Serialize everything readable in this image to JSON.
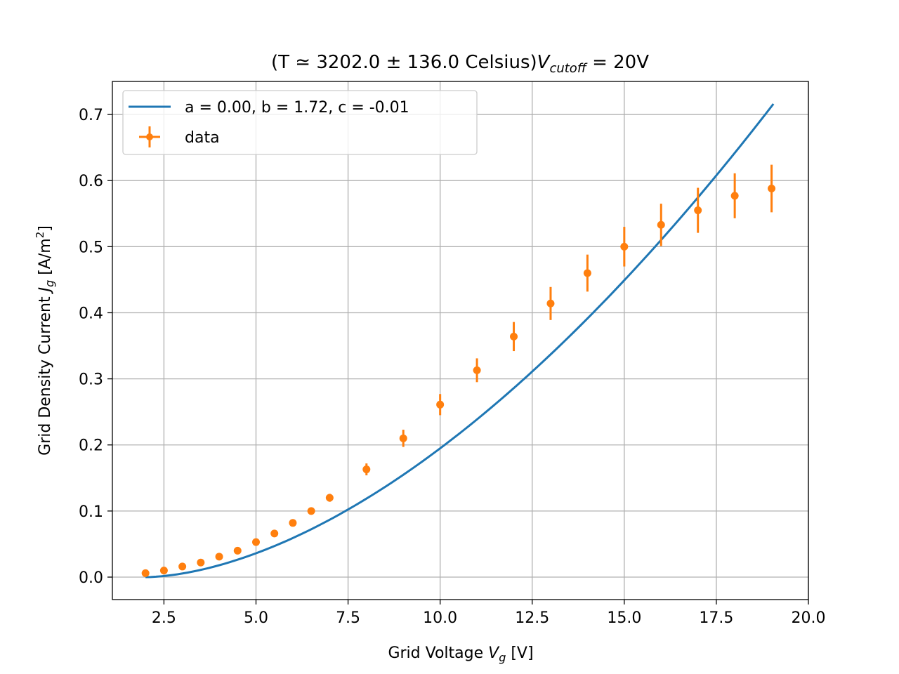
{
  "chart_data": {
    "type": "scatter",
    "title": {
      "prefix": "(T ≃ 3202.0 ± 136.0 Celsius)",
      "var": "V",
      "var_sub": "cutoff",
      "suffix": " = 20V"
    },
    "xlabel": {
      "text": "Grid Voltage ",
      "var": "V",
      "var_sub": "g",
      "suffix": " [V]"
    },
    "ylabel": {
      "text": "Grid Density Current ",
      "var": "J",
      "var_sub": "g",
      "suffix": " [A/m",
      "sup": "2",
      "end": "]"
    },
    "xlim": [
      1.1,
      20.0
    ],
    "ylim": [
      -0.034,
      0.75
    ],
    "xticks": [
      2.5,
      5.0,
      7.5,
      10.0,
      12.5,
      15.0,
      17.5,
      20.0
    ],
    "xtick_labels": [
      "2.5",
      "5.0",
      "7.5",
      "10.0",
      "12.5",
      "15.0",
      "17.5",
      "20.0"
    ],
    "yticks": [
      0.0,
      0.1,
      0.2,
      0.3,
      0.4,
      0.5,
      0.6,
      0.7
    ],
    "ytick_labels": [
      "0.0",
      "0.1",
      "0.2",
      "0.3",
      "0.4",
      "0.5",
      "0.6",
      "0.7"
    ],
    "grid": true,
    "legend_position": "upper-left",
    "series": [
      {
        "name": "a = 0.00, b = 1.72, c = -0.01",
        "kind": "fit-line",
        "color": "#1f77b4",
        "fit": {
          "b": 1.72,
          "x0": 2.0,
          "x_end": 19.05,
          "y_end": 0.716
        }
      },
      {
        "name": "data",
        "kind": "errorbar",
        "color": "#ff7f0e",
        "x": [
          2.0,
          2.5,
          3.0,
          3.5,
          4.0,
          4.5,
          5.0,
          5.5,
          6.0,
          6.5,
          7.0,
          8.0,
          9.0,
          10.0,
          11.0,
          12.0,
          13.0,
          14.0,
          15.0,
          16.0,
          17.0,
          18.0,
          19.0
        ],
        "y": [
          0.006,
          0.01,
          0.016,
          0.022,
          0.031,
          0.04,
          0.053,
          0.066,
          0.082,
          0.1,
          0.12,
          0.163,
          0.21,
          0.261,
          0.313,
          0.364,
          0.414,
          0.46,
          0.5,
          0.533,
          0.555,
          0.577,
          0.588
        ],
        "yerr": [
          0.001,
          0.002,
          0.002,
          0.002,
          0.003,
          0.003,
          0.003,
          0.004,
          0.004,
          0.005,
          0.006,
          0.009,
          0.013,
          0.016,
          0.018,
          0.022,
          0.025,
          0.028,
          0.03,
          0.032,
          0.034,
          0.034,
          0.036
        ]
      }
    ]
  }
}
